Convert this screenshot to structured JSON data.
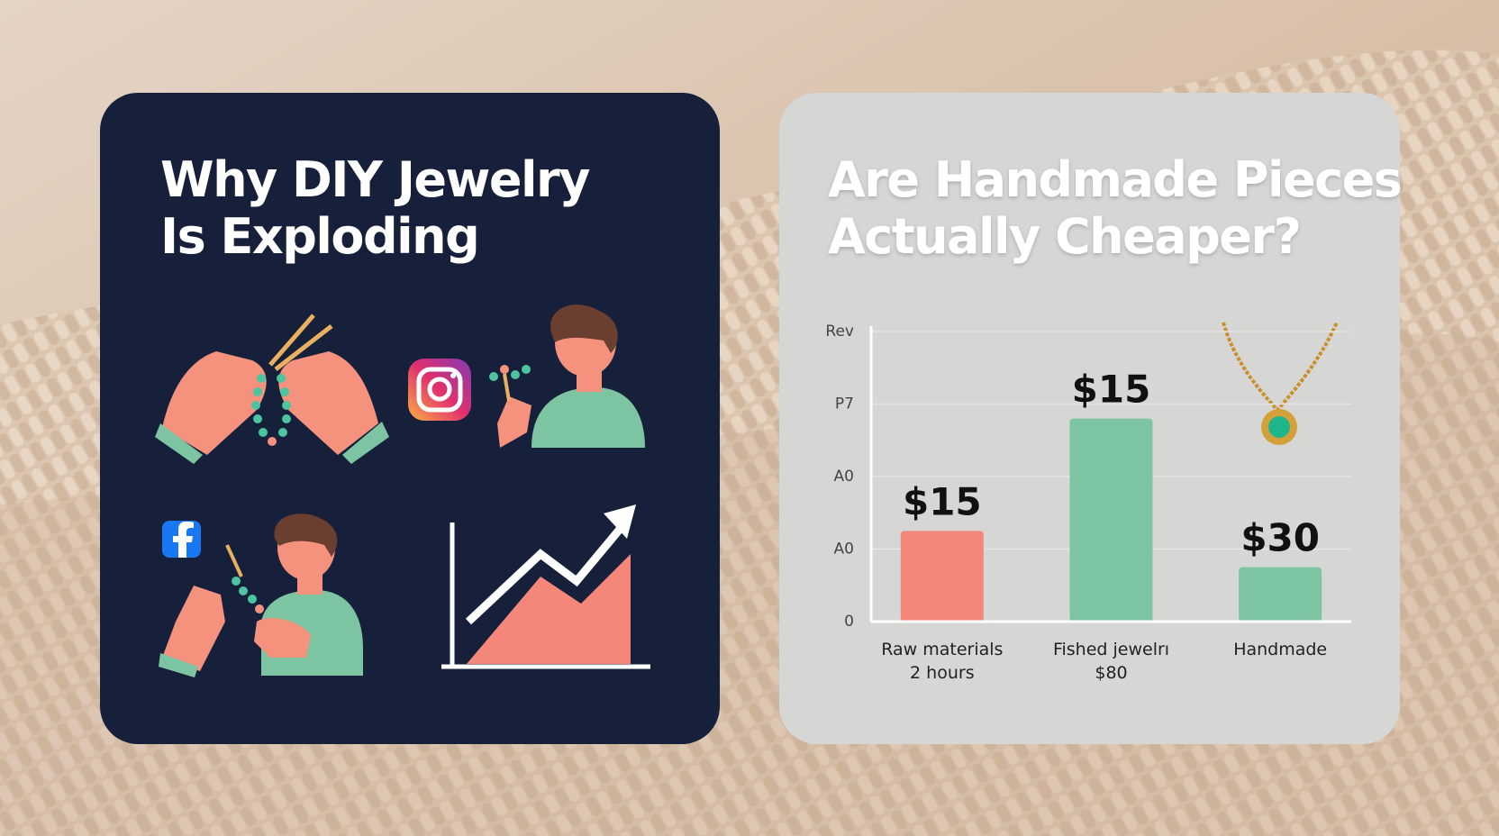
{
  "left_card": {
    "title": [
      "Why DIY Jewelry",
      "Is Exploding"
    ]
  },
  "chart_data": {
    "type": "bar",
    "title": [
      "Are Handmade Pieces",
      "Actually Cheaper?"
    ],
    "categories": [
      "Raw materials",
      "Fished jewelrı",
      "Handmade"
    ],
    "category_sublabels": [
      "2 hours",
      "$80",
      null
    ],
    "values": [
      25,
      56,
      15
    ],
    "annotations": [
      "$15",
      "$15",
      "$30"
    ],
    "colors": [
      "#f4877a",
      "#7cc4a2",
      "#7cc4a2"
    ],
    "ylim": [
      0,
      80
    ],
    "yticks": [
      0,
      {
        "value": 20,
        "label": "A0"
      },
      {
        "value": 40,
        "label": "A0"
      },
      {
        "value": 60,
        "label": "P7"
      },
      {
        "value": 80,
        "label": "Rev"
      }
    ],
    "grid": true
  }
}
